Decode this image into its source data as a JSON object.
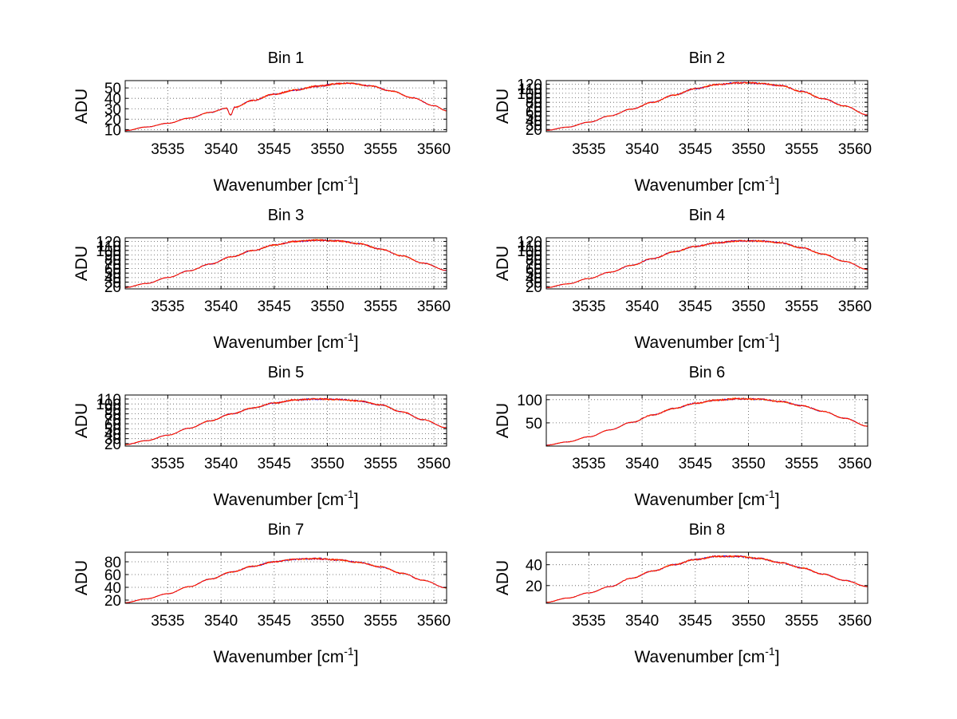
{
  "chart_data": [
    {
      "type": "line",
      "title": "Bin 1",
      "xlabel": "Wavenumber [cm",
      "xlabel_sup": "-1",
      "xlabel_end": "]",
      "ylabel": "ADU",
      "xlim": [
        3531,
        3561.2
      ],
      "ylim": [
        8,
        57
      ],
      "xticks": [
        3535,
        3540,
        3545,
        3550,
        3555,
        3560
      ],
      "yticks": [
        10,
        20,
        30,
        40,
        50
      ],
      "grid": true,
      "x": [
        3531,
        3533,
        3535,
        3537,
        3539,
        3540.5,
        3540.9,
        3541.3,
        3543,
        3545,
        3547,
        3549,
        3551,
        3552,
        3554,
        3556,
        3558,
        3560,
        3561.2
      ],
      "values": [
        9,
        12.5,
        16,
        21,
        26.5,
        30.5,
        24,
        31.5,
        38,
        44,
        48,
        51.5,
        54,
        54.5,
        52,
        47,
        40.5,
        33,
        28
      ],
      "series_colors": [
        "#0000ff",
        "#ff8c00",
        "#ff0000"
      ]
    },
    {
      "type": "line",
      "title": "Bin 2",
      "xlabel": "Wavenumber [cm",
      "xlabel_sup": "-1",
      "xlabel_end": "]",
      "ylabel": "ADU",
      "xlim": [
        3531,
        3561.2
      ],
      "ylim": [
        15,
        128
      ],
      "xticks": [
        3535,
        3540,
        3545,
        3550,
        3555,
        3560
      ],
      "yticks": [
        20,
        30,
        40,
        50,
        60,
        70,
        80,
        90,
        100,
        110,
        120
      ],
      "grid": true,
      "x": [
        3531,
        3533,
        3535,
        3537,
        3539,
        3541,
        3543,
        3545,
        3547,
        3549,
        3550,
        3551,
        3553,
        3555,
        3557,
        3559,
        3561.2
      ],
      "values": [
        18,
        25,
        36,
        50,
        65,
        80,
        96,
        110,
        119,
        123,
        123,
        122,
        117,
        104,
        88,
        72,
        52
      ],
      "series_colors": [
        "#0000ff",
        "#ff8c00",
        "#ff0000"
      ]
    },
    {
      "type": "line",
      "title": "Bin 3",
      "xlabel": "Wavenumber [cm",
      "xlabel_sup": "-1",
      "xlabel_end": "]",
      "ylabel": "ADU",
      "xlim": [
        3531,
        3561.2
      ],
      "ylim": [
        15,
        128
      ],
      "xticks": [
        3535,
        3540,
        3545,
        3550,
        3555,
        3560
      ],
      "yticks": [
        20,
        30,
        40,
        50,
        60,
        70,
        80,
        90,
        100,
        110,
        120
      ],
      "grid": true,
      "x": [
        3531,
        3533,
        3535,
        3537,
        3539,
        3541,
        3543,
        3545,
        3547,
        3549,
        3551,
        3553,
        3555,
        3557,
        3559,
        3561.2
      ],
      "values": [
        18,
        27,
        40,
        55,
        70,
        86,
        100,
        112,
        120,
        123,
        121,
        115,
        103,
        88,
        72,
        56
      ],
      "series_colors": [
        "#0000ff",
        "#ff8c00",
        "#ff0000"
      ]
    },
    {
      "type": "line",
      "title": "Bin 4",
      "xlabel": "Wavenumber [cm",
      "xlabel_sup": "-1",
      "xlabel_end": "]",
      "ylabel": "ADU",
      "xlim": [
        3531,
        3561.2
      ],
      "ylim": [
        15,
        128
      ],
      "xticks": [
        3535,
        3540,
        3545,
        3550,
        3555,
        3560
      ],
      "yticks": [
        20,
        30,
        40,
        50,
        60,
        70,
        80,
        90,
        100,
        110,
        120
      ],
      "grid": true,
      "x": [
        3531,
        3533,
        3535,
        3537,
        3539,
        3541,
        3543,
        3545,
        3547,
        3549,
        3551,
        3553,
        3555,
        3557,
        3559,
        3561.2
      ],
      "values": [
        18,
        26,
        38,
        52,
        67,
        82,
        97,
        109,
        117,
        121,
        121,
        117,
        106,
        92,
        76,
        58
      ],
      "series_colors": [
        "#0000ff",
        "#ff8c00",
        "#ff0000"
      ]
    },
    {
      "type": "line",
      "title": "Bin 5",
      "xlabel": "Wavenumber [cm",
      "xlabel_sup": "-1",
      "xlabel_end": "]",
      "ylabel": "ADU",
      "xlim": [
        3531,
        3561.2
      ],
      "ylim": [
        15,
        118
      ],
      "xticks": [
        3535,
        3540,
        3545,
        3550,
        3555,
        3560
      ],
      "yticks": [
        20,
        30,
        40,
        50,
        60,
        70,
        80,
        90,
        100,
        110
      ],
      "grid": true,
      "x": [
        3531,
        3533,
        3535,
        3537,
        3539,
        3541,
        3543,
        3545,
        3547,
        3549,
        3551,
        3553,
        3555,
        3557,
        3559,
        3561.2
      ],
      "values": [
        18,
        26,
        37,
        51,
        66,
        80,
        92,
        102,
        108,
        110,
        109,
        106,
        98,
        84,
        68,
        52
      ],
      "series_colors": [
        "#0000ff",
        "#ff8c00",
        "#ff0000"
      ]
    },
    {
      "type": "line",
      "title": "Bin 6",
      "xlabel": "Wavenumber [cm",
      "xlabel_sup": "-1",
      "xlabel_end": "]",
      "ylabel": "ADU",
      "xlim": [
        3531,
        3561.2
      ],
      "ylim": [
        0,
        110
      ],
      "xticks": [
        3535,
        3540,
        3545,
        3550,
        3555,
        3560
      ],
      "yticks": [
        50,
        100
      ],
      "grid": true,
      "x": [
        3531,
        3533,
        3535,
        3537,
        3539,
        3541,
        3543,
        3545,
        3547,
        3549,
        3551,
        3553,
        3555,
        3557,
        3559,
        3561.2
      ],
      "values": [
        2,
        9,
        20,
        35,
        51,
        67,
        81,
        92,
        99,
        102,
        101,
        96,
        87,
        75,
        60,
        43
      ],
      "series_colors": [
        "#0000ff",
        "#ff8c00",
        "#ff0000"
      ]
    },
    {
      "type": "line",
      "title": "Bin 7",
      "xlabel": "Wavenumber [cm",
      "xlabel_sup": "-1",
      "xlabel_end": "]",
      "ylabel": "ADU",
      "xlim": [
        3531,
        3561.2
      ],
      "ylim": [
        15,
        95
      ],
      "xticks": [
        3535,
        3540,
        3545,
        3550,
        3555,
        3560
      ],
      "yticks": [
        20,
        40,
        60,
        80
      ],
      "grid": true,
      "x": [
        3531,
        3533,
        3535,
        3537,
        3539,
        3541,
        3543,
        3545,
        3547,
        3549,
        3551,
        3553,
        3555,
        3557,
        3559,
        3561.2
      ],
      "values": [
        16,
        22,
        30,
        41,
        53,
        64,
        73,
        80,
        84,
        85,
        83,
        79,
        72,
        62,
        51,
        39
      ],
      "series_colors": [
        "#0000ff",
        "#ff8c00",
        "#ff0000"
      ]
    },
    {
      "type": "line",
      "title": "Bin 8",
      "xlabel": "Wavenumber [cm",
      "xlabel_sup": "-1",
      "xlabel_end": "]",
      "ylabel": "ADU",
      "xlim": [
        3531,
        3561.2
      ],
      "ylim": [
        3,
        52
      ],
      "xticks": [
        3535,
        3540,
        3545,
        3550,
        3555,
        3560
      ],
      "yticks": [
        20,
        40
      ],
      "grid": true,
      "x": [
        3531,
        3533,
        3535,
        3537,
        3539,
        3541,
        3543,
        3545,
        3547,
        3549,
        3551,
        3553,
        3555,
        3557,
        3559,
        3561.2
      ],
      "values": [
        4,
        8,
        13,
        19,
        27,
        34,
        40,
        45,
        48,
        48,
        46,
        42,
        37,
        31,
        25,
        19
      ],
      "series_colors": [
        "#0000ff",
        "#ff8c00",
        "#ff0000"
      ]
    }
  ]
}
